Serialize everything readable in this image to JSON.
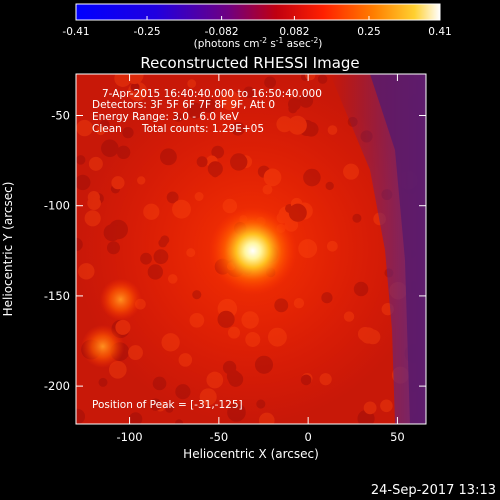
{
  "chart_data": {
    "type": "heatmap",
    "title": "Reconstructed RHESSI Image",
    "colorbar": {
      "ticks": [
        "-0.41",
        "-0.25",
        "-0.082",
        "0.082",
        "0.25",
        "0.41"
      ],
      "unit_base": "(photons cm",
      "unit_sup1": "-2",
      "unit_mid": " s",
      "unit_sup2": "-1",
      "unit_mid2": " asec",
      "unit_sup3": "-2",
      "unit_end": ")",
      "range": [
        -0.41,
        0.41
      ]
    },
    "xlabel": "Heliocentric X (arcsec)",
    "ylabel": "Heliocentric Y (arcsec)",
    "xlim": [
      -130,
      66
    ],
    "ylim": [
      -221,
      -27
    ],
    "x_ticks": [
      "-100",
      "-50",
      "0",
      "50"
    ],
    "y_ticks": [
      "-50",
      "-100",
      "-150",
      "-200"
    ],
    "annotations": {
      "time_range": "7-Apr-2015 16:40:40.000 to 16:50:40.000",
      "detectors": "Detectors: 3F 5F 6F 7F 8F 9F, Att 0",
      "energy_range": "Energy Range: 3.0 - 6.0 keV",
      "method": "Clean",
      "total_counts": "Total counts: 1.29E+05",
      "peak": "Position of Peak = [-31,-125]"
    },
    "peak": {
      "x": -31,
      "y": -125
    },
    "sources": [
      {
        "x": -31,
        "y": -125,
        "intensity": 0.41
      },
      {
        "x": -105,
        "y": -152,
        "intensity": 0.2
      },
      {
        "x": -115,
        "y": -178,
        "intensity": 0.22
      }
    ],
    "footer_timestamp": "24-Sep-2017 13:13"
  }
}
